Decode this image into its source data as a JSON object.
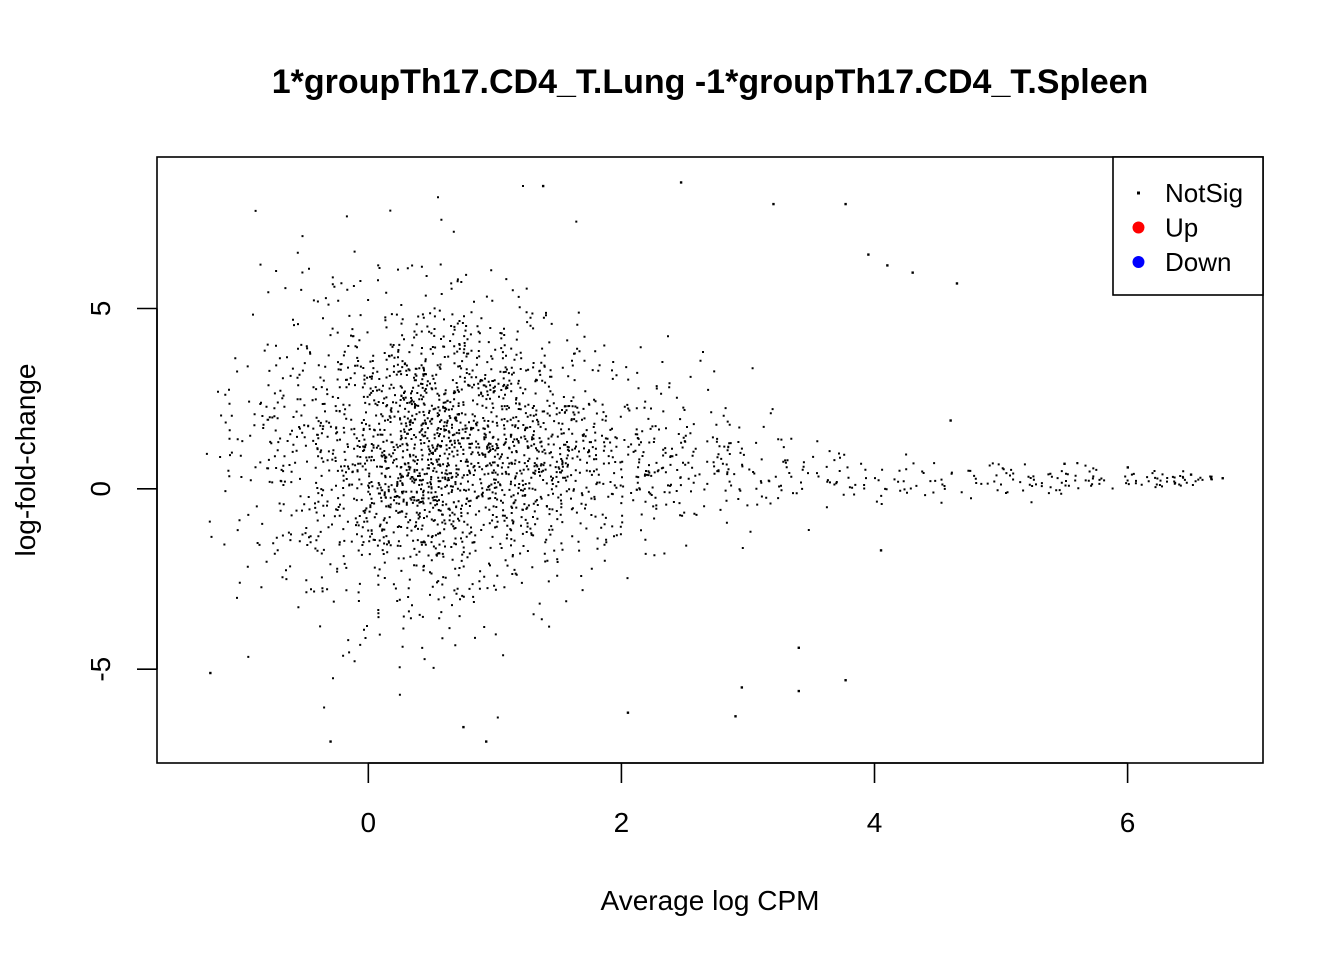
{
  "chart_data": {
    "type": "scatter",
    "title": "1*groupTh17.CD4_T.Lung -1*groupTh17.CD4_T.Spleen",
    "xlabel": "Average log CPM",
    "ylabel": "log-fold-change",
    "xlim": [
      -1.67,
      7.07
    ],
    "ylim": [
      -7.6,
      9.2
    ],
    "xticks": [
      0,
      2,
      4,
      6
    ],
    "yticks": [
      -5,
      0,
      5
    ],
    "xtick_labels": [
      "0",
      "2",
      "4",
      "6"
    ],
    "ytick_labels": [
      "-5",
      "0",
      "5"
    ],
    "grid": false,
    "legend_position": "top-right",
    "legend": [
      {
        "label": "NotSig",
        "color": "#000000",
        "marker": "small-dot"
      },
      {
        "label": "Up",
        "color": "#ff0000",
        "marker": "dot"
      },
      {
        "label": "Down",
        "color": "#0000ff",
        "marker": "dot"
      }
    ],
    "series": [
      {
        "name": "NotSig",
        "color": "#000000",
        "description_points": "dense cloud of genes; low-expression fan spanning logFC about -7 to 8.5 at logCPM -1.3 to 3.8, tapering to a narrow band around logFC 0.3 up to logCPM 6.7",
        "points": [
          {
            "x": -0.3,
            "y": -7.0
          },
          {
            "x": 0.93,
            "y": -7.0
          },
          {
            "x": 0.75,
            "y": -6.6
          },
          {
            "x": 2.05,
            "y": -6.2
          },
          {
            "x": 2.9,
            "y": -6.3
          },
          {
            "x": 2.95,
            "y": -5.5
          },
          {
            "x": 3.4,
            "y": -5.6
          },
          {
            "x": 3.77,
            "y": -5.3
          },
          {
            "x": 3.4,
            "y": -4.4
          },
          {
            "x": 4.05,
            "y": -1.7
          },
          {
            "x": -1.25,
            "y": -5.1
          },
          {
            "x": 2.47,
            "y": 8.5
          },
          {
            "x": 1.38,
            "y": 8.4
          },
          {
            "x": 3.77,
            "y": 7.9
          },
          {
            "x": 3.2,
            "y": 7.9
          },
          {
            "x": 3.95,
            "y": 6.5
          },
          {
            "x": 4.1,
            "y": 6.2
          },
          {
            "x": 4.3,
            "y": 6.0
          },
          {
            "x": 4.65,
            "y": 5.7
          },
          {
            "x": 4.6,
            "y": 1.9
          },
          {
            "x": 5.5,
            "y": 0.7
          },
          {
            "x": 6.0,
            "y": 0.6
          },
          {
            "x": 6.5,
            "y": 0.4
          },
          {
            "x": 6.75,
            "y": 0.3
          }
        ]
      },
      {
        "name": "Up",
        "color": "#ff0000",
        "points": []
      },
      {
        "name": "Down",
        "color": "#0000ff",
        "points": []
      }
    ]
  }
}
